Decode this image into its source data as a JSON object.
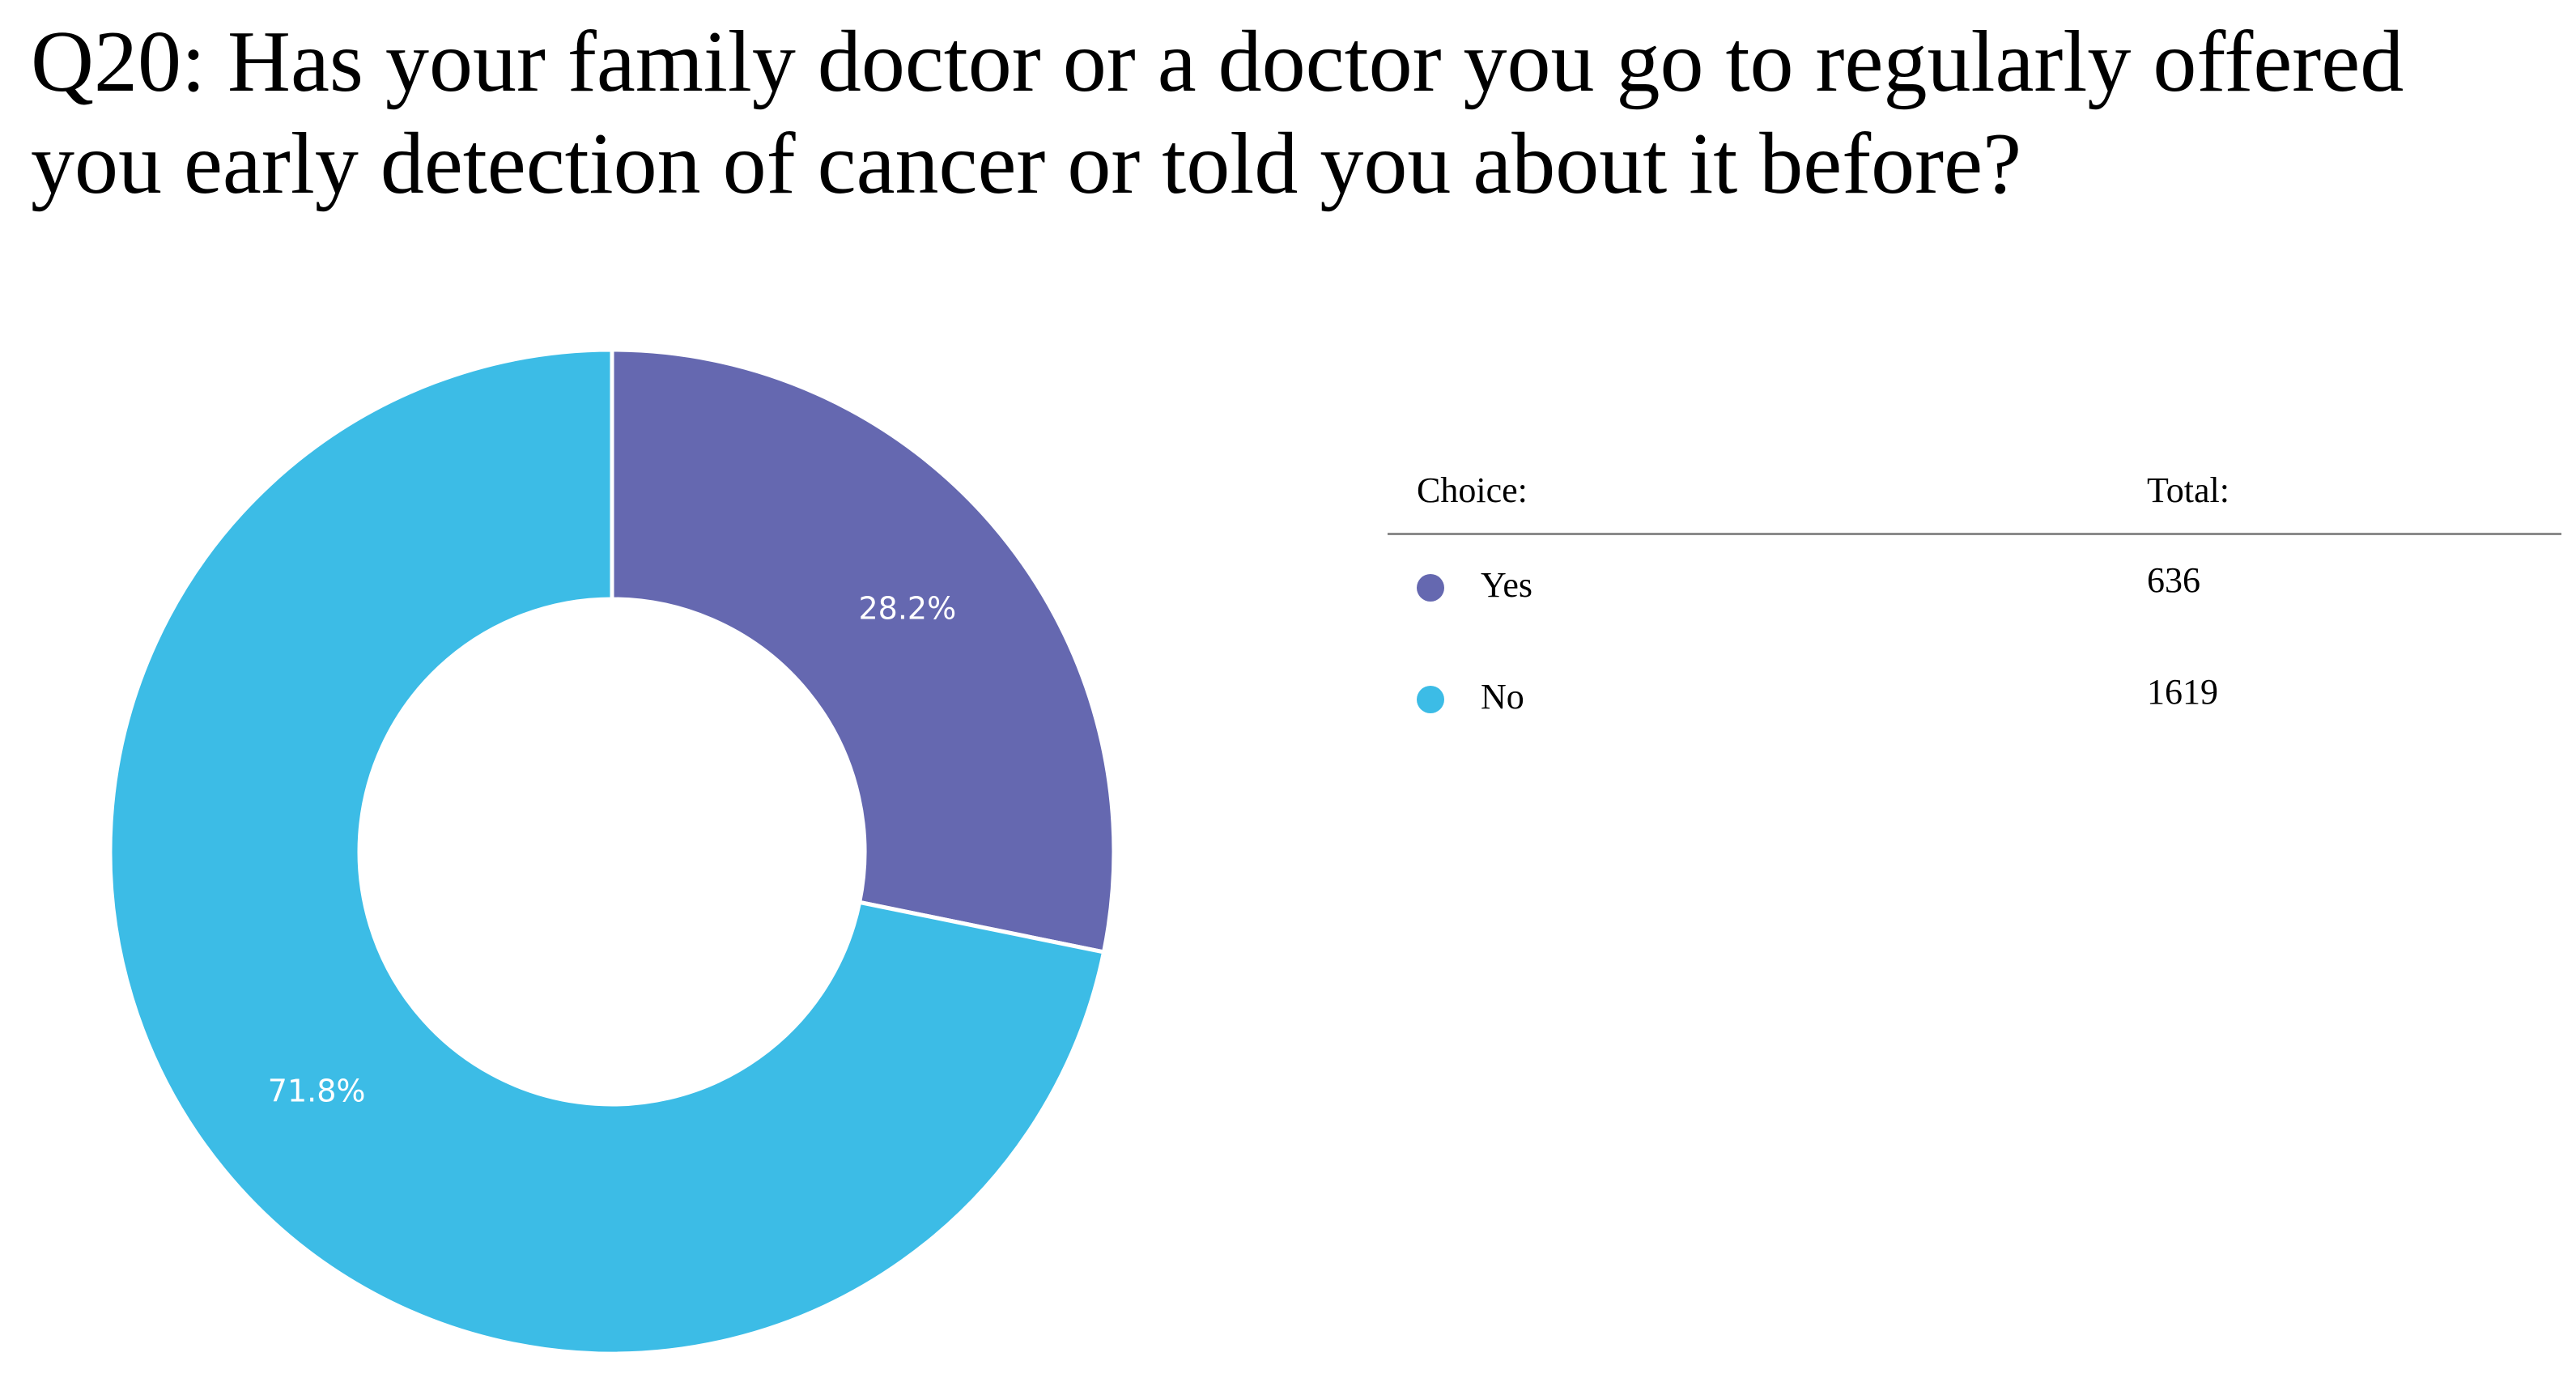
{
  "chart_data": {
    "type": "pie",
    "title": "Q20: Has your family doctor or a doctor you go to regularly offered you early detection of cancer or told you about it before?",
    "categories": [
      "Yes",
      "No"
    ],
    "values": [
      636,
      1619
    ],
    "percent_labels": [
      "28.2%",
      "71.8%"
    ],
    "colors": [
      "#6568b0",
      "#3cbce6"
    ],
    "legend": {
      "header_choice": "Choice:",
      "header_total": "Total:",
      "placement": "right"
    }
  }
}
